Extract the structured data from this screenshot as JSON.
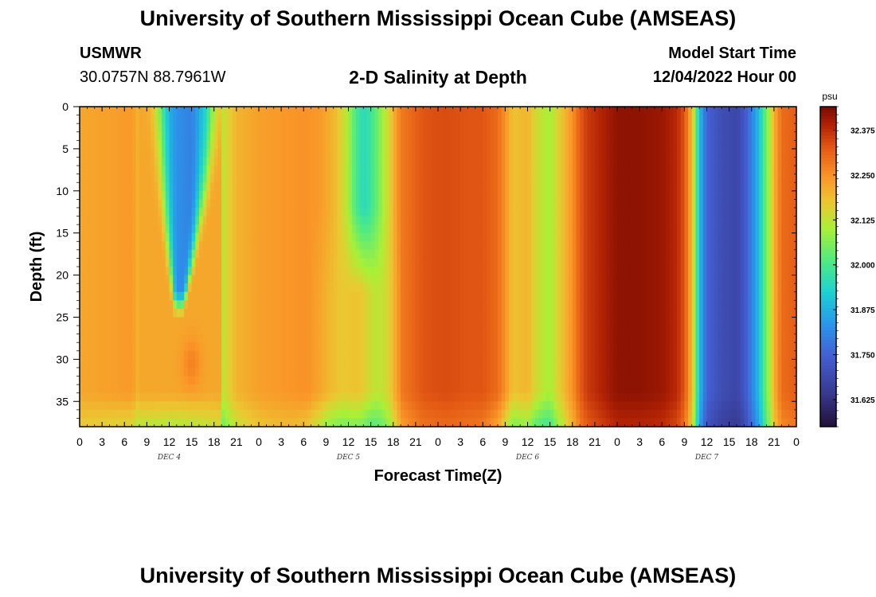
{
  "header": {
    "title": "University of Southern Mississippi Ocean Cube (AMSEAS)",
    "station": "USMWR",
    "coords": "30.0757N  88.7961W",
    "subtitle": "2-D Salinity at Depth",
    "start_label": "Model Start Time",
    "start_value": "12/04/2022 Hour 00"
  },
  "footer": {
    "title": "University of Southern Mississippi Ocean Cube (AMSEAS)"
  },
  "chart_data": {
    "type": "heatmap",
    "title": "2-D Salinity at Depth",
    "xlabel": "Forecast Time(Z)",
    "ylabel": "Depth (ft)",
    "x_range_hours": [
      0,
      96
    ],
    "y_range_ft": [
      0,
      38
    ],
    "x_ticks_hours": [
      0,
      3,
      6,
      9,
      12,
      15,
      18,
      21,
      24,
      27,
      30,
      33,
      36,
      39,
      42,
      45,
      48,
      51,
      54,
      57,
      60,
      63,
      66,
      69,
      72,
      75,
      78,
      81,
      84,
      87,
      90,
      93,
      96
    ],
    "x_tick_labels": [
      "0",
      "3",
      "6",
      "9",
      "12",
      "15",
      "18",
      "21",
      "0",
      "3",
      "6",
      "9",
      "12",
      "15",
      "18",
      "21",
      "0",
      "3",
      "6",
      "9",
      "12",
      "15",
      "18",
      "21",
      "0",
      "3",
      "6",
      "9",
      "12",
      "15",
      "18",
      "21",
      "0"
    ],
    "day_labels": [
      {
        "text": "DEC 4",
        "hour": 12
      },
      {
        "text": "DEC 5",
        "hour": 36
      },
      {
        "text": "DEC 6",
        "hour": 60
      },
      {
        "text": "DEC 7",
        "hour": 84
      }
    ],
    "y_ticks": [
      0,
      5,
      10,
      15,
      20,
      25,
      30,
      35
    ],
    "colorbar": {
      "unit": "psu",
      "range": [
        31.55,
        32.44
      ],
      "ticks": [
        "32.375",
        "32.250",
        "32.125",
        "32.000",
        "31.875",
        "31.750",
        "31.625"
      ],
      "tick_values": [
        32.375,
        32.25,
        32.125,
        32.0,
        31.875,
        31.75,
        31.625
      ]
    },
    "surface_profile": {
      "hours": [
        0,
        4,
        7,
        9,
        10,
        11,
        12,
        15,
        17,
        18,
        19,
        21,
        24,
        27,
        30,
        32,
        33,
        34,
        35,
        36,
        37,
        38,
        39,
        40,
        41,
        42,
        43,
        46,
        49,
        52,
        54,
        56,
        57,
        58,
        60,
        61,
        62,
        63,
        64,
        66,
        67,
        68,
        70,
        72,
        75,
        78,
        80,
        81,
        82,
        82.5,
        83,
        84,
        86,
        88,
        89,
        90,
        91,
        92,
        93,
        94,
        96
      ],
      "salinity": [
        32.22,
        32.23,
        32.24,
        32.15,
        32.05,
        31.92,
        31.84,
        31.8,
        31.92,
        32.05,
        32.12,
        32.2,
        32.23,
        32.24,
        32.25,
        32.24,
        32.22,
        32.2,
        32.16,
        32.1,
        32.0,
        31.95,
        31.98,
        32.05,
        32.12,
        32.2,
        32.28,
        32.33,
        32.34,
        32.33,
        32.33,
        32.3,
        32.25,
        32.18,
        32.2,
        32.15,
        32.12,
        32.1,
        32.15,
        32.25,
        32.32,
        32.36,
        32.39,
        32.42,
        32.42,
        32.41,
        32.38,
        32.33,
        32.2,
        32.05,
        31.9,
        31.75,
        31.7,
        31.68,
        31.72,
        31.8,
        31.9,
        32.05,
        32.2,
        32.3,
        32.32
      ]
    }
  }
}
